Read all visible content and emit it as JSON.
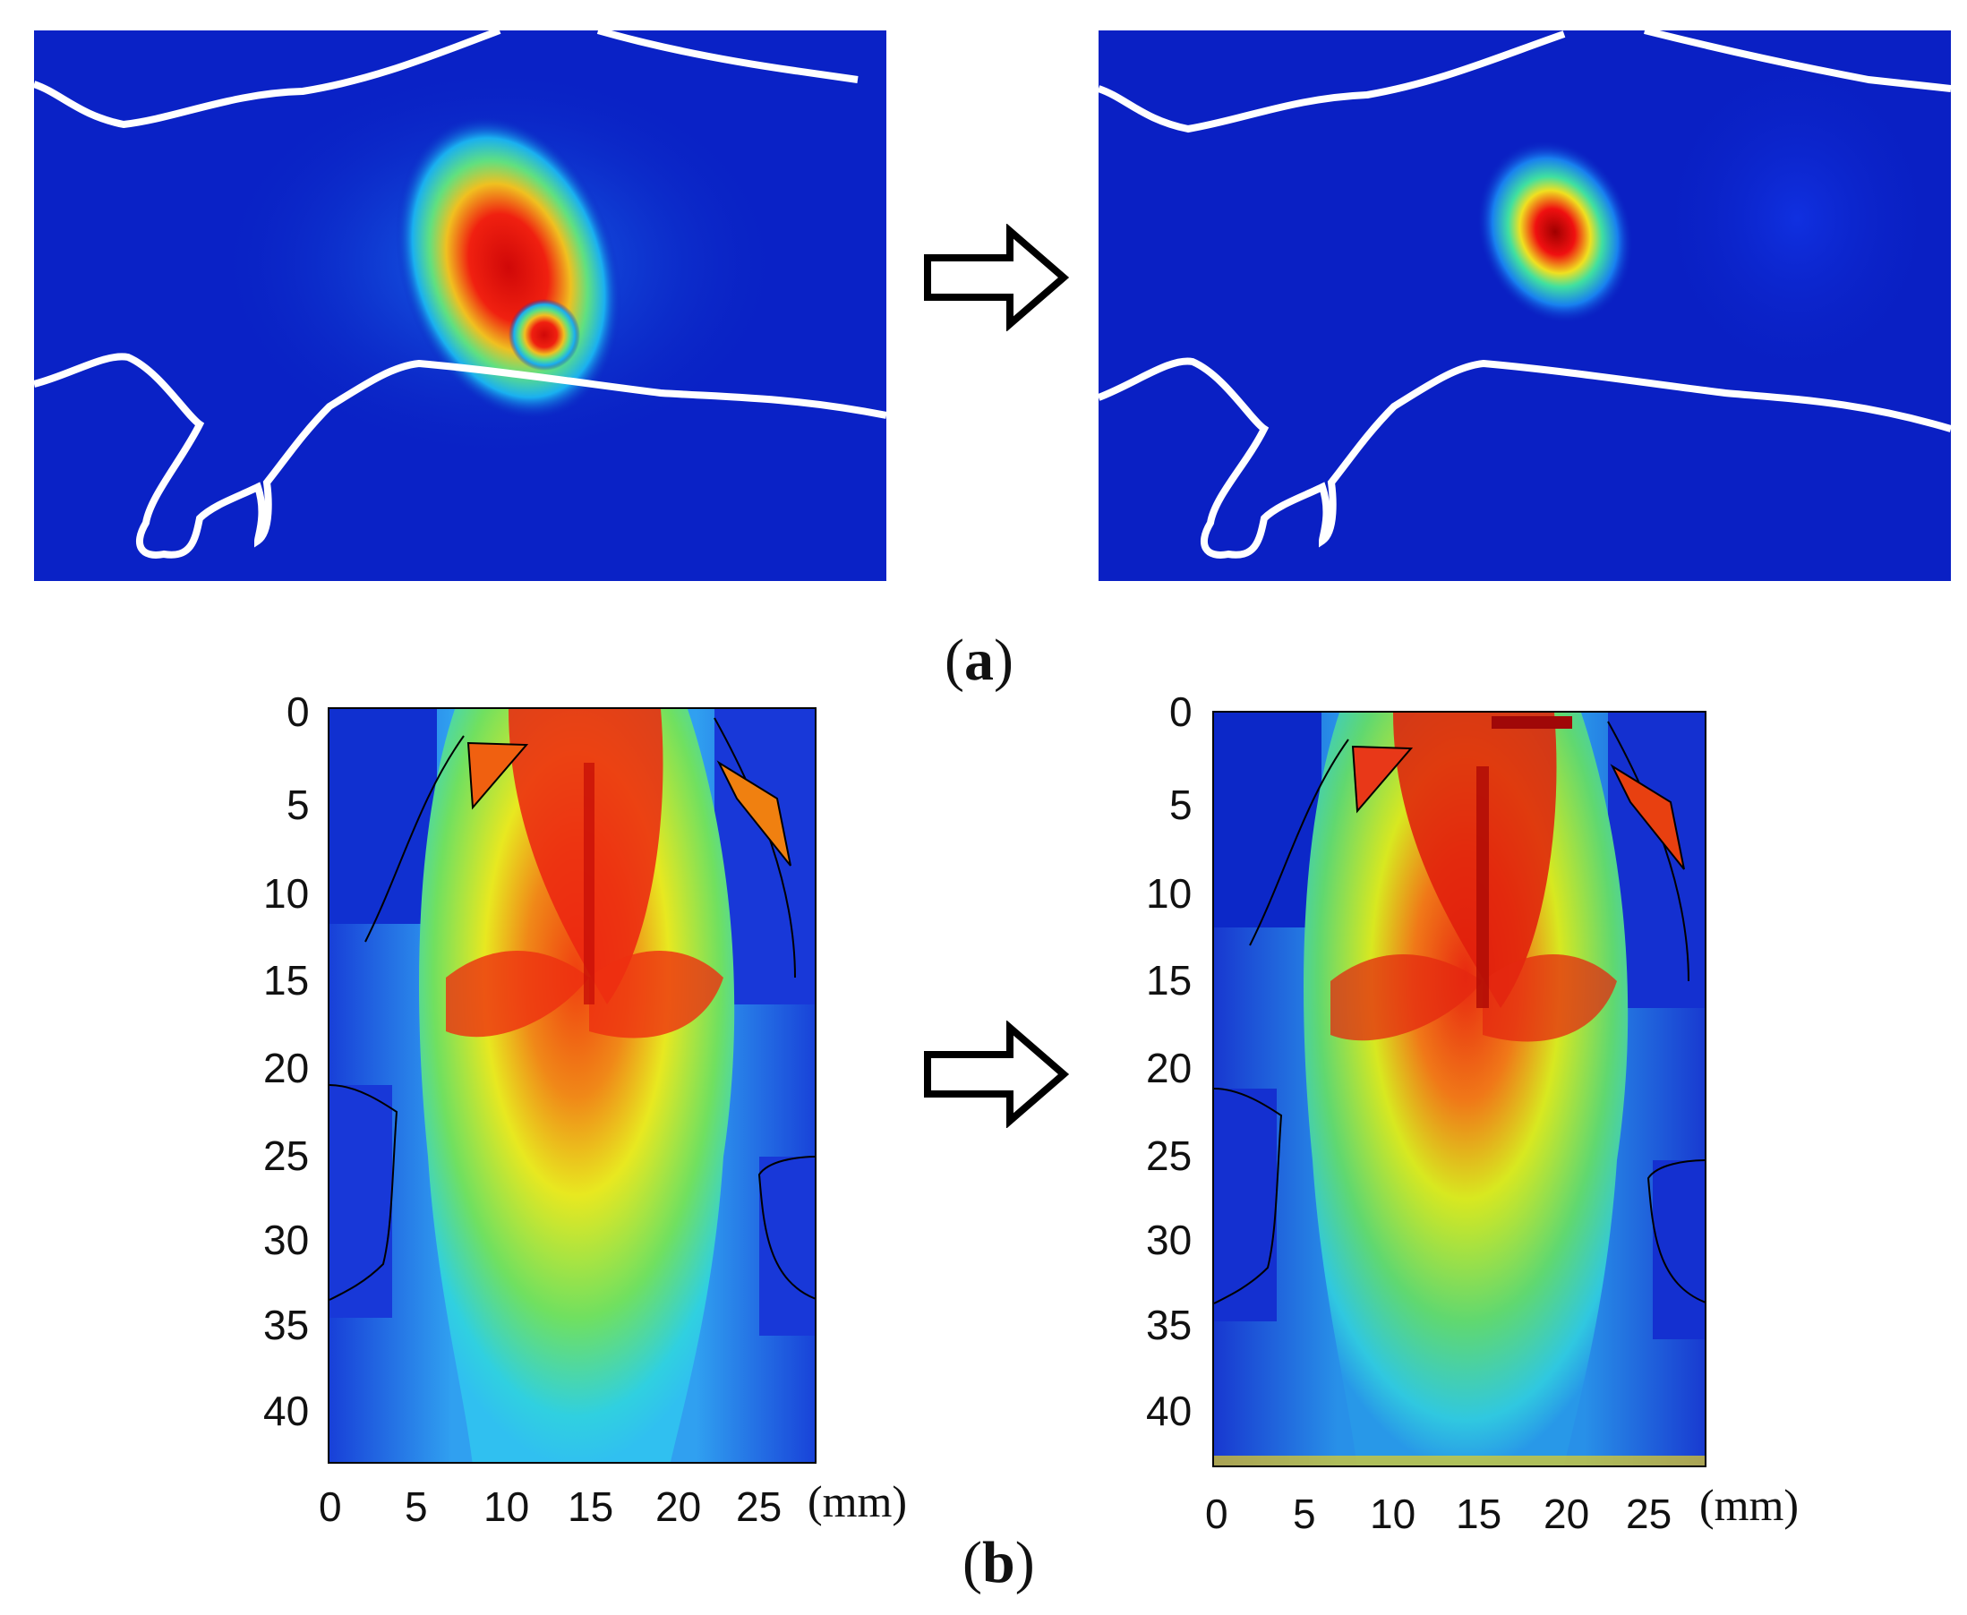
{
  "panel_a": {
    "label_open": "(",
    "label_letter": "a",
    "label_close": ")"
  },
  "panel_b": {
    "label_open": "(",
    "label_letter": "b",
    "label_close": ")",
    "unit": "(mm)",
    "y_ticks": [
      "0",
      "5",
      "10",
      "15",
      "20",
      "25",
      "30",
      "35",
      "40"
    ],
    "x_ticks": [
      "0",
      "5",
      "10",
      "15",
      "20",
      "25"
    ]
  },
  "colors": {
    "background_blue": "#0a1fc0",
    "deep_blue": "#0018b8",
    "cyan": "#18d8f0",
    "green": "#50e070",
    "yellow": "#f0f020",
    "red": "#e01010",
    "outline": "#ffffff"
  }
}
